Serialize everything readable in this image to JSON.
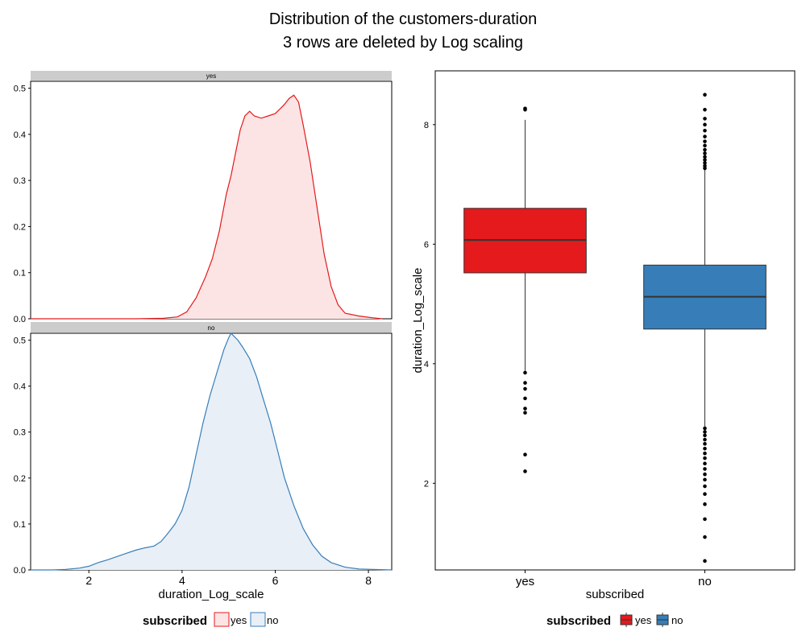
{
  "figure": {
    "title_line1": "Distribution of the customers-duration",
    "title_line2": "3 rows are deleted by Log scaling"
  },
  "colors": {
    "yes": "#E41A1C",
    "no": "#377EB8",
    "yes_fill": "#FCE4E4",
    "no_fill": "#E8EFF7",
    "strip": "#CCCCCC"
  },
  "chart_data": [
    {
      "type": "area",
      "subtype": "faceted-density",
      "xlabel": "duration_Log_scale",
      "xlim": [
        0.75,
        8.5
      ],
      "xticks": [
        2,
        4,
        6,
        8
      ],
      "ylim": [
        0,
        0.515
      ],
      "yticks": [
        0.0,
        0.1,
        0.2,
        0.3,
        0.4,
        0.5
      ],
      "ytick_labels": [
        "0.0",
        "0.1",
        "0.2",
        "0.3",
        "0.4",
        "0.5"
      ],
      "legend": {
        "title": "subscribed",
        "entries": [
          "yes",
          "no"
        ],
        "position": "bottom"
      },
      "facets": [
        {
          "strip_label": "yes",
          "color_key": "yes",
          "x": [
            0.75,
            3.0,
            3.6,
            3.9,
            4.1,
            4.3,
            4.5,
            4.65,
            4.8,
            4.95,
            5.05,
            5.15,
            5.25,
            5.35,
            5.45,
            5.55,
            5.7,
            5.85,
            6.0,
            6.1,
            6.2,
            6.3,
            6.4,
            6.5,
            6.6,
            6.75,
            6.9,
            7.05,
            7.2,
            7.35,
            7.5,
            7.8,
            8.1,
            8.3
          ],
          "y": [
            0.0,
            0.0,
            0.001,
            0.004,
            0.015,
            0.045,
            0.09,
            0.13,
            0.19,
            0.27,
            0.31,
            0.36,
            0.41,
            0.44,
            0.45,
            0.44,
            0.435,
            0.44,
            0.445,
            0.455,
            0.465,
            0.478,
            0.485,
            0.47,
            0.42,
            0.34,
            0.24,
            0.14,
            0.07,
            0.03,
            0.012,
            0.006,
            0.002,
            0.0
          ]
        },
        {
          "strip_label": "no",
          "color_key": "no",
          "x": [
            0.75,
            1.2,
            1.5,
            1.8,
            2.0,
            2.2,
            2.4,
            2.6,
            2.8,
            3.0,
            3.2,
            3.4,
            3.55,
            3.7,
            3.85,
            4.0,
            4.15,
            4.3,
            4.45,
            4.6,
            4.75,
            4.9,
            5.0,
            5.05,
            5.1,
            5.2,
            5.3,
            5.45,
            5.6,
            5.75,
            5.9,
            6.05,
            6.2,
            6.4,
            6.6,
            6.8,
            7.0,
            7.2,
            7.5,
            7.8,
            8.1,
            8.5
          ],
          "y": [
            0.0,
            0.0,
            0.001,
            0.004,
            0.008,
            0.016,
            0.022,
            0.029,
            0.036,
            0.043,
            0.048,
            0.052,
            0.062,
            0.08,
            0.1,
            0.13,
            0.18,
            0.25,
            0.32,
            0.38,
            0.43,
            0.48,
            0.505,
            0.515,
            0.51,
            0.5,
            0.485,
            0.46,
            0.42,
            0.37,
            0.32,
            0.26,
            0.2,
            0.14,
            0.09,
            0.055,
            0.03,
            0.016,
            0.006,
            0.002,
            0.001,
            0.0
          ]
        }
      ]
    },
    {
      "type": "box",
      "xlabel": "subscribed",
      "ylabel": "duration_Log_scale",
      "categories": [
        "yes",
        "no"
      ],
      "ylim": [
        0.55,
        8.9
      ],
      "yticks": [
        2,
        4,
        6,
        8
      ],
      "legend": {
        "title": "subscribed",
        "entries": [
          "yes",
          "no"
        ],
        "position": "bottom"
      },
      "boxes": [
        {
          "name": "yes",
          "color_key": "yes",
          "q1": 5.52,
          "median": 6.07,
          "q3": 6.6,
          "whisker_low": 3.88,
          "whisker_high": 8.08,
          "outliers": [
            8.25,
            8.27,
            3.85,
            3.68,
            3.58,
            3.42,
            3.25,
            3.18,
            2.48,
            2.2
          ]
        },
        {
          "name": "no",
          "color_key": "no",
          "q1": 4.58,
          "median": 5.12,
          "q3": 5.65,
          "whisker_low": 2.95,
          "whisker_high": 7.25,
          "outliers": [
            8.5,
            8.25,
            8.1,
            8.0,
            7.9,
            7.8,
            7.72,
            7.65,
            7.58,
            7.52,
            7.46,
            7.41,
            7.36,
            7.31,
            7.27,
            2.92,
            2.86,
            2.8,
            2.73,
            2.66,
            2.58,
            2.5,
            2.42,
            2.33,
            2.24,
            2.15,
            2.06,
            1.95,
            1.82,
            1.65,
            1.4,
            1.1,
            0.7
          ]
        }
      ]
    }
  ]
}
